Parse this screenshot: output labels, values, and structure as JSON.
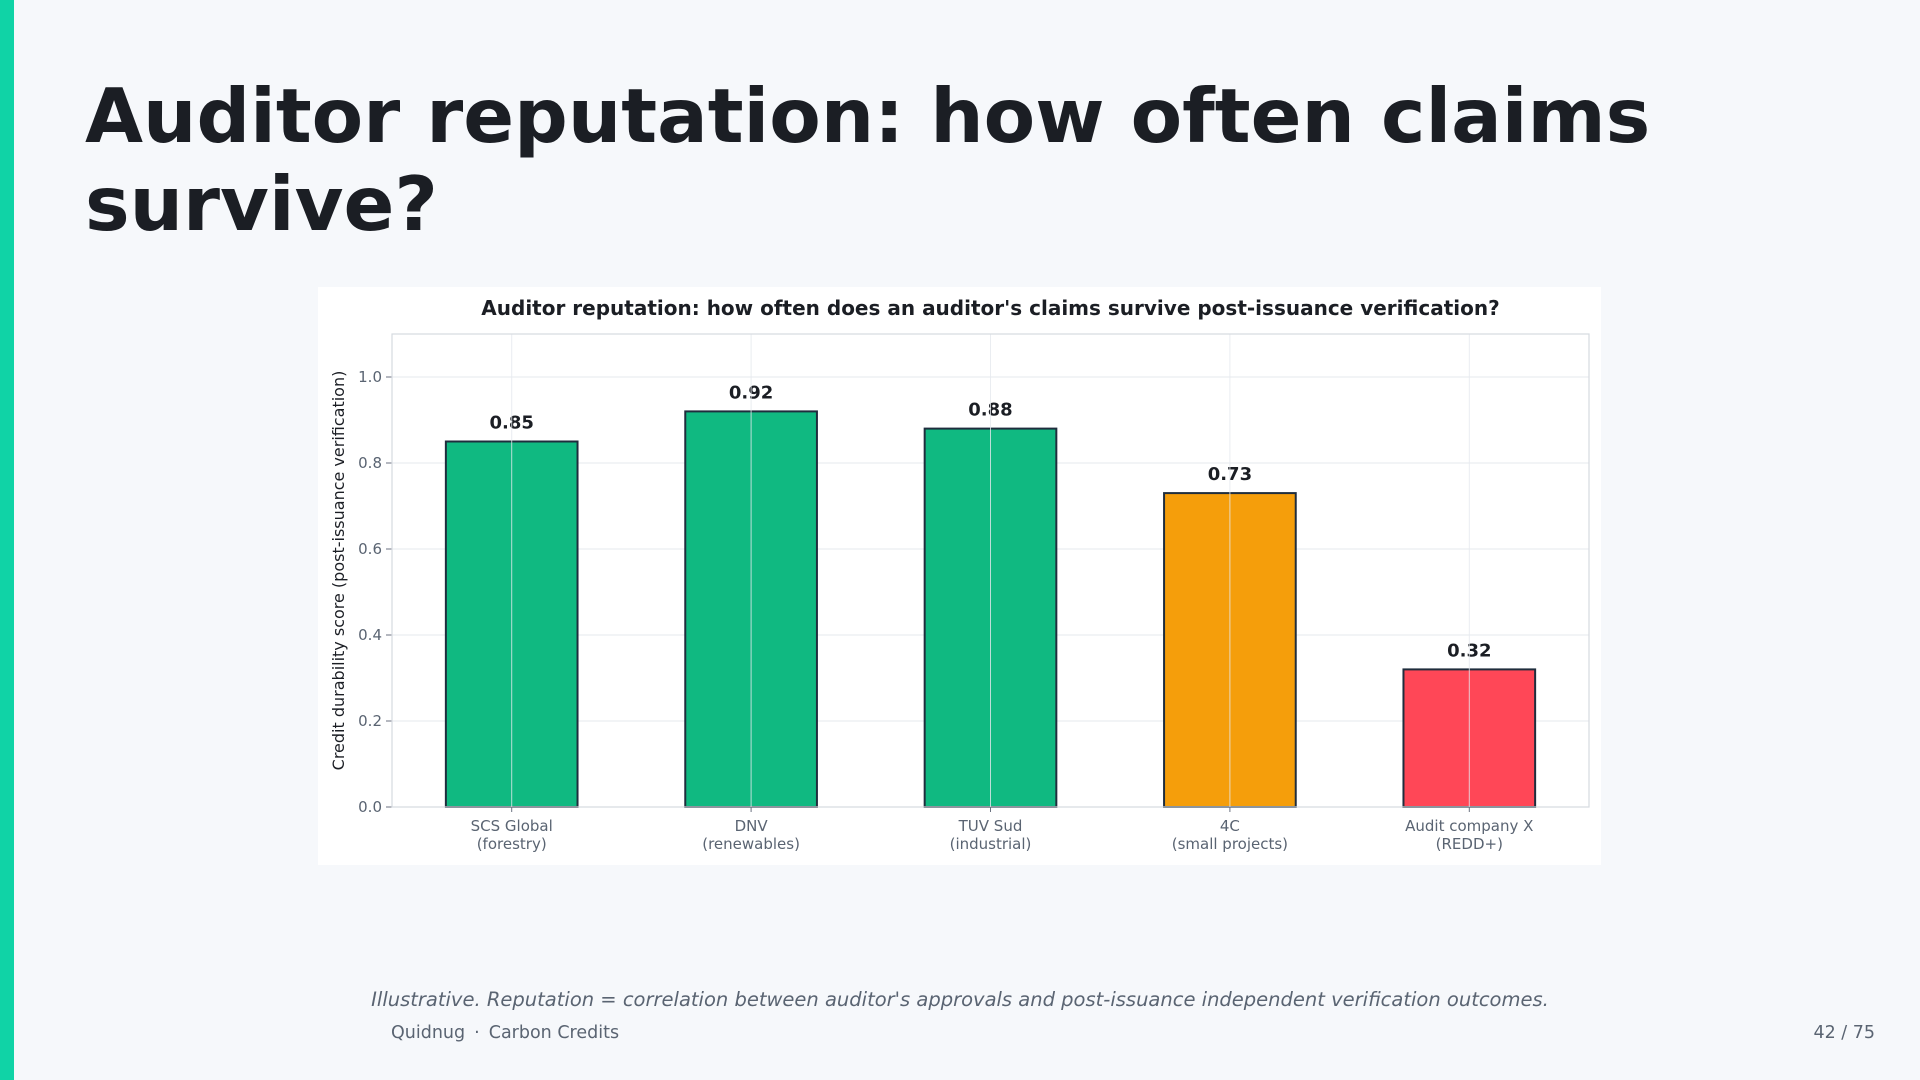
{
  "slide": {
    "title": "Auditor reputation: how often claims survive?",
    "caption": "Illustrative. Reputation = correlation between auditor's approvals and post-issuance independent verification outcomes.",
    "footer": {
      "brand": "Quidnug",
      "separator": "·",
      "section": "Carbon Credits",
      "page": "42 / 75"
    }
  },
  "colors": {
    "accent": "#10d3a6",
    "good": "#10b981",
    "medium": "#f59e0b",
    "poor": "#ff4757",
    "bar_edge": "#1f2d3d"
  },
  "chart_data": {
    "type": "bar",
    "title": "Auditor reputation: how often does an auditor's claims survive post-issuance verification?",
    "xlabel": "",
    "ylabel": "Credit durability score (post-issuance verification)",
    "categories": [
      "SCS Global\n(forestry)",
      "DNV\n(renewables)",
      "TUV Sud\n(industrial)",
      "4C\n(small projects)",
      "Audit company X\n(REDD+)"
    ],
    "values": [
      0.85,
      0.92,
      0.88,
      0.73,
      0.32
    ],
    "value_labels": [
      "0.85",
      "0.92",
      "0.88",
      "0.73",
      "0.32"
    ],
    "bar_colors": [
      "#10b981",
      "#10b981",
      "#10b981",
      "#f59e0b",
      "#ff4757"
    ],
    "ylim": [
      0,
      1.1
    ],
    "yticks": [
      0.0,
      0.2,
      0.4,
      0.6,
      0.8,
      1.0
    ],
    "ytick_labels": [
      "0.0",
      "0.2",
      "0.4",
      "0.6",
      "0.8",
      "1.0"
    ],
    "grid": true,
    "legend": "none"
  }
}
